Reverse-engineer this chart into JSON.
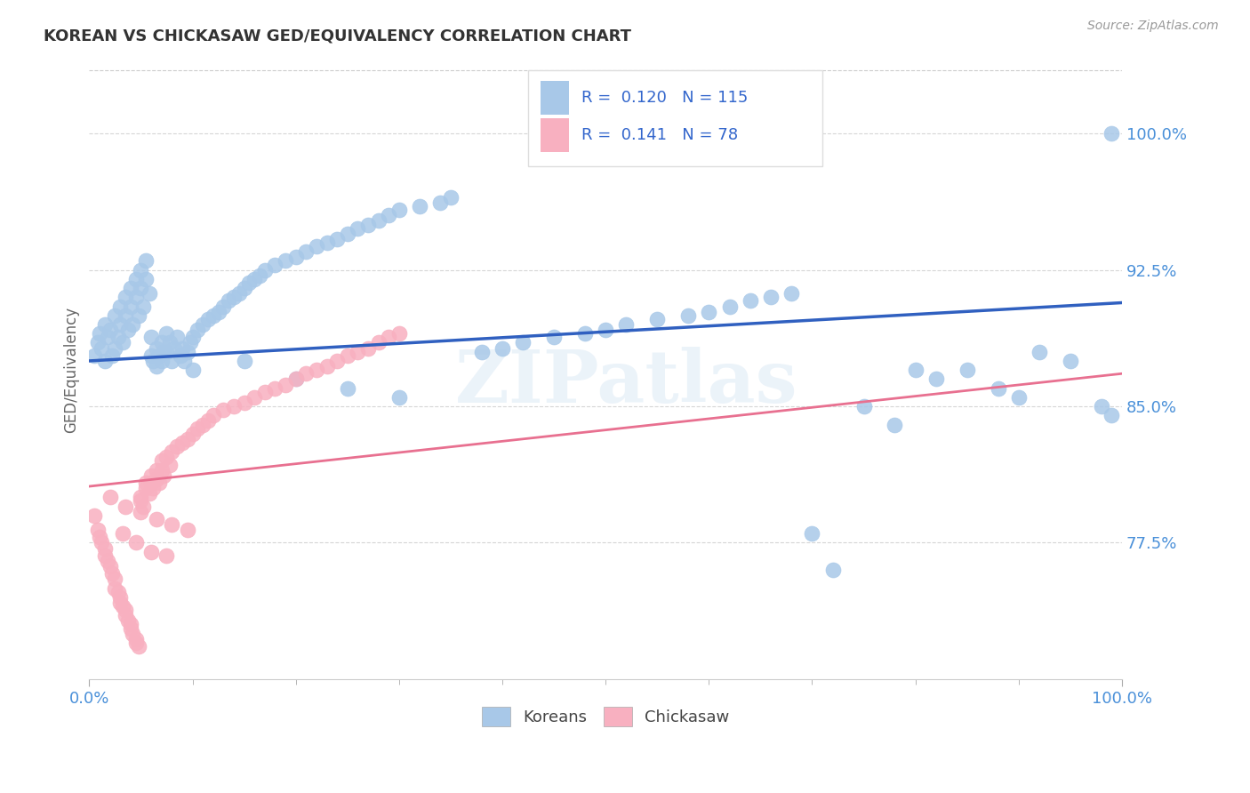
{
  "title": "KOREAN VS CHICKASAW GED/EQUIVALENCY CORRELATION CHART",
  "source": "Source: ZipAtlas.com",
  "ylabel": "GED/Equivalency",
  "xlim": [
    0.0,
    1.0
  ],
  "ylim": [
    0.7,
    1.04
  ],
  "yticks": [
    0.775,
    0.85,
    0.925,
    1.0
  ],
  "ytick_labels": [
    "77.5%",
    "85.0%",
    "92.5%",
    "100.0%"
  ],
  "xtick_labels": [
    "0.0%",
    "100.0%"
  ],
  "xticks": [
    0.0,
    1.0
  ],
  "korean_color": "#a8c8e8",
  "chickasaw_color": "#f8b0c0",
  "korean_line_color": "#3060c0",
  "chickasaw_line_color": "#e87090",
  "legend_koreans": "Koreans",
  "legend_chickasaw": "Chickasaw",
  "watermark": "ZIPatlas",
  "korean_R": 0.12,
  "korean_N": 115,
  "chickasaw_R": 0.141,
  "chickasaw_N": 78,
  "korean_trend": [
    0.875,
    0.907
  ],
  "chickasaw_trend": [
    0.806,
    0.868
  ],
  "korean_x": [
    0.005,
    0.008,
    0.01,
    0.012,
    0.015,
    0.015,
    0.018,
    0.02,
    0.022,
    0.025,
    0.025,
    0.028,
    0.03,
    0.03,
    0.032,
    0.035,
    0.035,
    0.038,
    0.04,
    0.04,
    0.042,
    0.045,
    0.045,
    0.048,
    0.05,
    0.05,
    0.052,
    0.055,
    0.055,
    0.058,
    0.06,
    0.06,
    0.062,
    0.065,
    0.065,
    0.068,
    0.07,
    0.07,
    0.072,
    0.075,
    0.075,
    0.078,
    0.08,
    0.082,
    0.085,
    0.088,
    0.09,
    0.092,
    0.095,
    0.098,
    0.1,
    0.105,
    0.11,
    0.115,
    0.12,
    0.125,
    0.13,
    0.135,
    0.14,
    0.145,
    0.15,
    0.155,
    0.16,
    0.165,
    0.17,
    0.18,
    0.19,
    0.2,
    0.21,
    0.22,
    0.23,
    0.24,
    0.25,
    0.26,
    0.27,
    0.28,
    0.29,
    0.3,
    0.32,
    0.34,
    0.35,
    0.38,
    0.4,
    0.42,
    0.45,
    0.48,
    0.5,
    0.52,
    0.55,
    0.58,
    0.6,
    0.62,
    0.64,
    0.66,
    0.68,
    0.7,
    0.72,
    0.75,
    0.78,
    0.8,
    0.82,
    0.85,
    0.88,
    0.9,
    0.92,
    0.95,
    0.98,
    0.99,
    0.1,
    0.15,
    0.2,
    0.25,
    0.3,
    0.99
  ],
  "korean_y": [
    0.878,
    0.885,
    0.89,
    0.882,
    0.895,
    0.875,
    0.888,
    0.892,
    0.878,
    0.9,
    0.882,
    0.888,
    0.905,
    0.895,
    0.885,
    0.91,
    0.9,
    0.892,
    0.915,
    0.905,
    0.895,
    0.92,
    0.91,
    0.9,
    0.925,
    0.915,
    0.905,
    0.93,
    0.92,
    0.912,
    0.878,
    0.888,
    0.875,
    0.882,
    0.872,
    0.878,
    0.885,
    0.875,
    0.88,
    0.89,
    0.88,
    0.885,
    0.875,
    0.882,
    0.888,
    0.878,
    0.882,
    0.875,
    0.88,
    0.885,
    0.888,
    0.892,
    0.895,
    0.898,
    0.9,
    0.902,
    0.905,
    0.908,
    0.91,
    0.912,
    0.915,
    0.918,
    0.92,
    0.922,
    0.925,
    0.928,
    0.93,
    0.932,
    0.935,
    0.938,
    0.94,
    0.942,
    0.945,
    0.948,
    0.95,
    0.952,
    0.955,
    0.958,
    0.96,
    0.962,
    0.965,
    0.88,
    0.882,
    0.885,
    0.888,
    0.89,
    0.892,
    0.895,
    0.898,
    0.9,
    0.902,
    0.905,
    0.908,
    0.91,
    0.912,
    0.78,
    0.76,
    0.85,
    0.84,
    0.87,
    0.865,
    0.87,
    0.86,
    0.855,
    0.88,
    0.875,
    0.85,
    0.845,
    0.87,
    0.875,
    0.865,
    0.86,
    0.855,
    1.0
  ],
  "chickasaw_x": [
    0.005,
    0.008,
    0.01,
    0.012,
    0.015,
    0.015,
    0.018,
    0.02,
    0.022,
    0.025,
    0.025,
    0.028,
    0.03,
    0.03,
    0.032,
    0.035,
    0.035,
    0.038,
    0.04,
    0.04,
    0.042,
    0.045,
    0.045,
    0.048,
    0.05,
    0.05,
    0.052,
    0.055,
    0.055,
    0.058,
    0.06,
    0.06,
    0.062,
    0.065,
    0.065,
    0.068,
    0.07,
    0.07,
    0.072,
    0.075,
    0.078,
    0.08,
    0.085,
    0.09,
    0.095,
    0.1,
    0.105,
    0.11,
    0.115,
    0.12,
    0.13,
    0.14,
    0.15,
    0.16,
    0.17,
    0.18,
    0.19,
    0.2,
    0.21,
    0.22,
    0.23,
    0.24,
    0.25,
    0.26,
    0.27,
    0.28,
    0.29,
    0.3,
    0.032,
    0.045,
    0.06,
    0.075,
    0.02,
    0.035,
    0.05,
    0.065,
    0.08,
    0.095
  ],
  "chickasaw_y": [
    0.79,
    0.782,
    0.778,
    0.775,
    0.772,
    0.768,
    0.765,
    0.762,
    0.758,
    0.755,
    0.75,
    0.748,
    0.745,
    0.742,
    0.74,
    0.738,
    0.735,
    0.732,
    0.73,
    0.728,
    0.725,
    0.722,
    0.72,
    0.718,
    0.8,
    0.798,
    0.795,
    0.808,
    0.805,
    0.802,
    0.812,
    0.808,
    0.805,
    0.815,
    0.81,
    0.808,
    0.82,
    0.815,
    0.812,
    0.822,
    0.818,
    0.825,
    0.828,
    0.83,
    0.832,
    0.835,
    0.838,
    0.84,
    0.842,
    0.845,
    0.848,
    0.85,
    0.852,
    0.855,
    0.858,
    0.86,
    0.862,
    0.865,
    0.868,
    0.87,
    0.872,
    0.875,
    0.878,
    0.88,
    0.882,
    0.885,
    0.888,
    0.89,
    0.78,
    0.775,
    0.77,
    0.768,
    0.8,
    0.795,
    0.792,
    0.788,
    0.785,
    0.782
  ]
}
